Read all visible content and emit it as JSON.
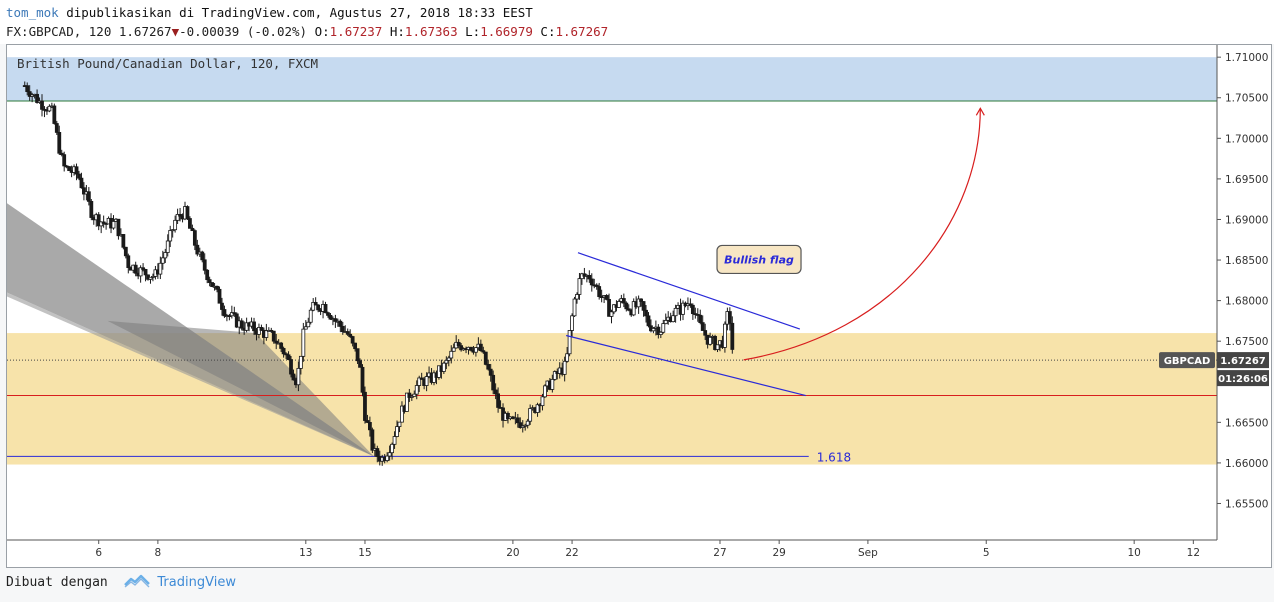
{
  "header": {
    "author": "tom_mok",
    "published": "dipublikasikan di TradingView.com, Agustus 27, 2018 18:33 EEST",
    "symbol_line": "FX:GBPCAD, 120 1.67267",
    "change": "-0.00039 (-0.02%)",
    "ohlc": {
      "o_label": "O:",
      "o": "1.67237",
      "h_label": "H:",
      "h": "1.67363",
      "l_label": "L:",
      "l": "1.66979",
      "c_label": "C:",
      "c": "1.67267"
    }
  },
  "legend_title": "British Pound/Canadian Dollar, 120, FXCM",
  "price_badge": {
    "symbol": "GBPCAD",
    "price": "1.67267",
    "countdown": "01:26:06"
  },
  "annotation": {
    "label": "Bullish flag",
    "fib_label": "1.618"
  },
  "footer": {
    "made_with": "Dibuat dengan",
    "brand": "TradingView"
  },
  "colors": {
    "resistance_zone": "#c6daf0",
    "support_zone": "#f7e3aa",
    "channel": "#2a2ad8",
    "arrow": "#d81e1e",
    "red_line": "#d81e1e",
    "fib_line": "#2a2ad8",
    "fan": "#8c8c8c",
    "candle": "#1a1a1a"
  },
  "chart_data": {
    "type": "candlestick",
    "title": "British Pound/Canadian Dollar, 120, FXCM",
    "ylim": [
      1.6505,
      1.7115
    ],
    "y_ticks": [
      1.71,
      1.705,
      1.7,
      1.695,
      1.69,
      1.685,
      1.68,
      1.675,
      1.67,
      1.665,
      1.66,
      1.655
    ],
    "y_tick_labels": [
      "1.71000",
      "1.70500",
      "1.70000",
      "1.69500",
      "1.69000",
      "1.68500",
      "1.68000",
      "1.67500",
      "1.67000",
      "1.66500",
      "1.66000",
      "1.65500"
    ],
    "x_ticks": [
      {
        "label": "6",
        "day": 6
      },
      {
        "label": "8",
        "day": 8
      },
      {
        "label": "13",
        "day": 13
      },
      {
        "label": "15",
        "day": 15
      },
      {
        "label": "20",
        "day": 20
      },
      {
        "label": "22",
        "day": 22
      },
      {
        "label": "27",
        "day": 27
      },
      {
        "label": "29",
        "day": 29
      },
      {
        "label": "Sep",
        "day": 32
      },
      {
        "label": "5",
        "day": 36
      },
      {
        "label": "10",
        "day": 41
      },
      {
        "label": "12",
        "day": 43
      }
    ],
    "price_path": [
      [
        3.5,
        1.7065
      ],
      [
        4.0,
        1.7045
      ],
      [
        4.4,
        1.7035
      ],
      [
        4.8,
        1.6965
      ],
      [
        5.3,
        1.6955
      ],
      [
        5.8,
        1.6905
      ],
      [
        6.2,
        1.6895
      ],
      [
        6.6,
        1.6895
      ],
      [
        7.0,
        1.6845
      ],
      [
        7.5,
        1.6835
      ],
      [
        7.9,
        1.683
      ],
      [
        8.3,
        1.6865
      ],
      [
        8.6,
        1.69
      ],
      [
        8.9,
        1.691
      ],
      [
        9.2,
        1.6875
      ],
      [
        9.5,
        1.6845
      ],
      [
        9.9,
        1.6815
      ],
      [
        10.3,
        1.6785
      ],
      [
        10.8,
        1.677
      ],
      [
        11.3,
        1.6765
      ],
      [
        11.9,
        1.6755
      ],
      [
        12.3,
        1.6735
      ],
      [
        12.7,
        1.67
      ],
      [
        12.9,
        1.6755
      ],
      [
        13.2,
        1.679
      ],
      [
        13.6,
        1.6795
      ],
      [
        14.0,
        1.6775
      ],
      [
        14.4,
        1.676
      ],
      [
        14.8,
        1.6725
      ],
      [
        15.0,
        1.666
      ],
      [
        15.3,
        1.6612
      ],
      [
        15.6,
        1.6605
      ],
      [
        15.9,
        1.6625
      ],
      [
        16.2,
        1.666
      ],
      [
        16.5,
        1.6685
      ],
      [
        16.9,
        1.67
      ],
      [
        17.3,
        1.6705
      ],
      [
        17.7,
        1.672
      ],
      [
        18.1,
        1.6745
      ],
      [
        18.5,
        1.6745
      ],
      [
        18.9,
        1.674
      ],
      [
        19.2,
        1.671
      ],
      [
        19.5,
        1.667
      ],
      [
        19.8,
        1.665
      ],
      [
        20.3,
        1.665
      ],
      [
        20.7,
        1.6665
      ],
      [
        21.1,
        1.669
      ],
      [
        21.5,
        1.671
      ],
      [
        21.8,
        1.672
      ],
      [
        21.9,
        1.6755
      ],
      [
        22.1,
        1.6805
      ],
      [
        22.3,
        1.683
      ],
      [
        22.6,
        1.683
      ],
      [
        23.0,
        1.6805
      ],
      [
        23.3,
        1.6785
      ],
      [
        23.6,
        1.68
      ],
      [
        24.0,
        1.679
      ],
      [
        24.3,
        1.6795
      ],
      [
        24.6,
        1.677
      ],
      [
        25.0,
        1.6765
      ],
      [
        25.4,
        1.6785
      ],
      [
        25.7,
        1.679
      ],
      [
        26.0,
        1.68
      ],
      [
        26.3,
        1.677
      ],
      [
        26.6,
        1.6752
      ],
      [
        26.9,
        1.6745
      ],
      [
        27.1,
        1.675
      ],
      [
        27.3,
        1.679
      ],
      [
        27.45,
        1.6727
      ]
    ],
    "zones": {
      "resistance": [
        1.7046,
        1.71
      ],
      "support": [
        1.6598,
        1.676
      ]
    },
    "horizontal_levels": {
      "red": 1.6683,
      "fib_1_618": 1.6608
    },
    "flag_channel": {
      "upper": [
        [
          22.2,
          1.6859
        ],
        [
          29.7,
          1.6765
        ]
      ],
      "lower": [
        [
          21.8,
          1.6757
        ],
        [
          29.9,
          1.6683
        ]
      ]
    },
    "last_price": 1.67267,
    "x_range_days": [
      2.9,
      43.8
    ]
  }
}
